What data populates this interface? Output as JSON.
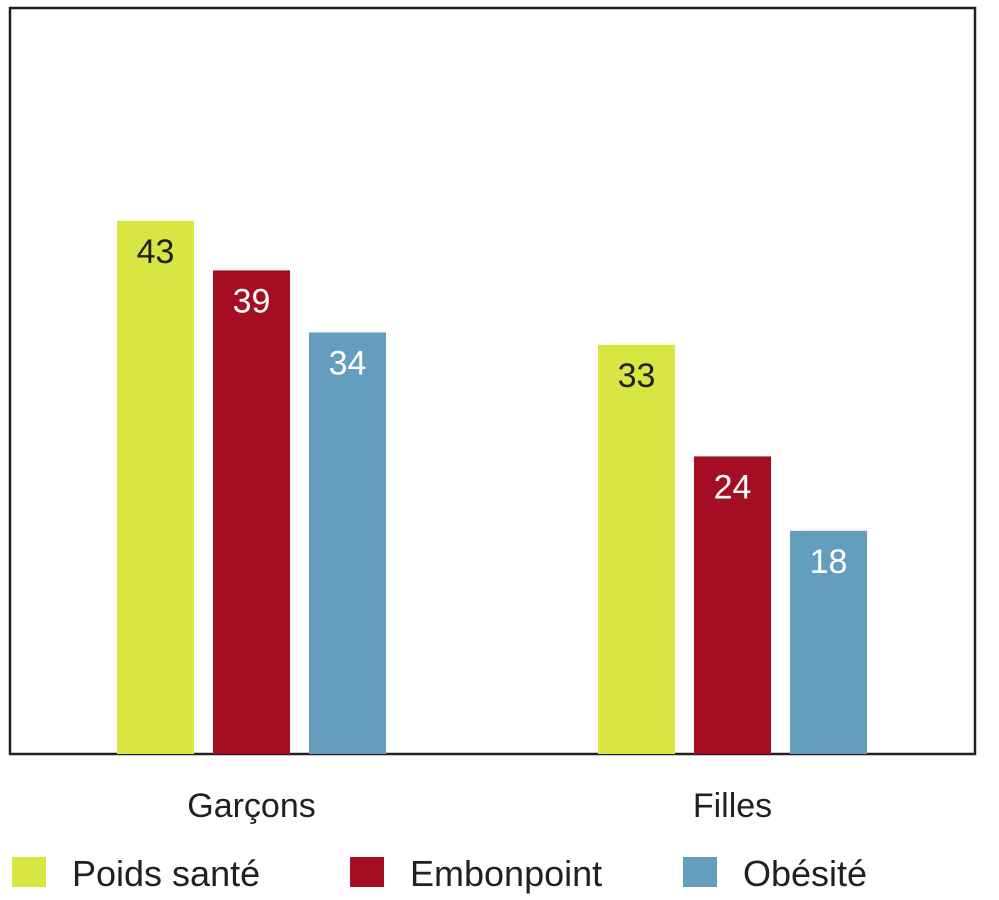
{
  "chart_data": {
    "type": "bar",
    "title": "",
    "xlabel": "",
    "ylabel": "",
    "ylim": [
      0,
      60
    ],
    "grid": false,
    "legend_position": "bottom",
    "categories": [
      "Garçons",
      "Filles"
    ],
    "series": [
      {
        "name": "Poids santé",
        "values": [
          43,
          33
        ],
        "color": "#d9e542",
        "label_color": "#231f20"
      },
      {
        "name": "Embonpoint",
        "values": [
          39,
          24
        ],
        "color": "#a50d22",
        "label_color": "#ffffff"
      },
      {
        "name": "Obésité",
        "values": [
          34,
          18
        ],
        "color": "#639ebe",
        "label_color": "#ffffff"
      }
    ]
  }
}
